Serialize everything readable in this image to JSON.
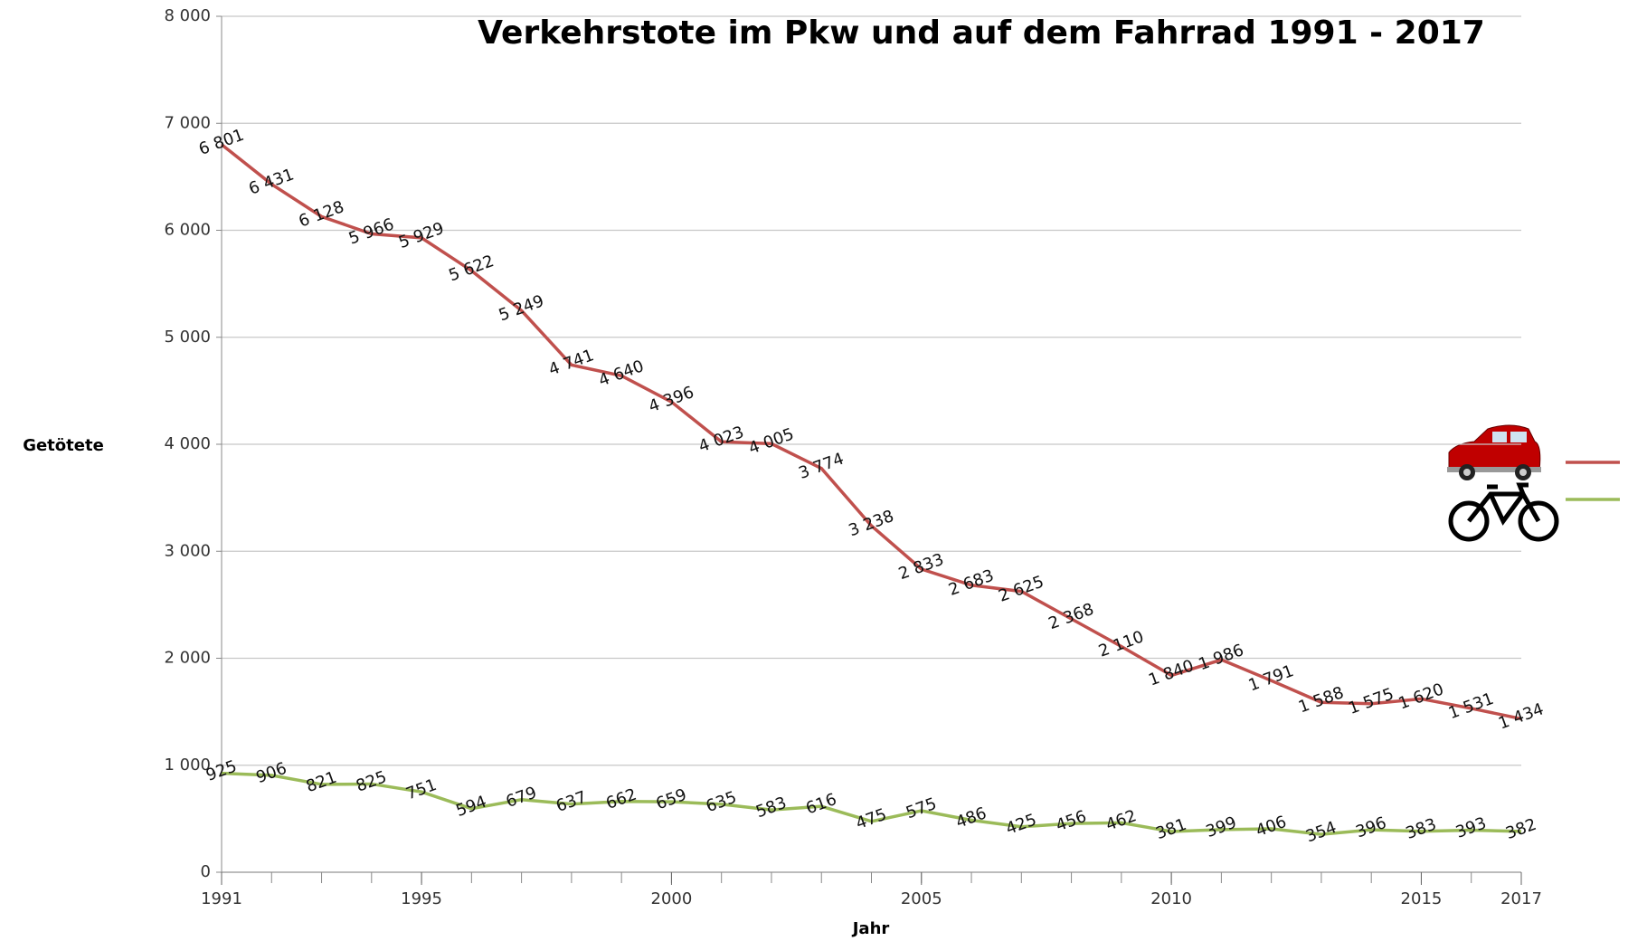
{
  "chart_data": {
    "type": "line",
    "title": "Verkehrstote im Pkw und auf dem Fahrrad 1991 - 2017",
    "x_label": "Jahr",
    "y_label": "Getötete",
    "x": [
      1991,
      1992,
      1993,
      1994,
      1995,
      1996,
      1997,
      1998,
      1999,
      2000,
      2001,
      2002,
      2003,
      2004,
      2005,
      2006,
      2007,
      2008,
      2009,
      2010,
      2011,
      2012,
      2013,
      2014,
      2015,
      2016,
      2017
    ],
    "series": [
      {
        "color": "#c0504d",
        "values": [
          6801,
          6431,
          6128,
          5966,
          5929,
          5622,
          5249,
          4741,
          4640,
          4396,
          4023,
          4005,
          3774,
          3238,
          2833,
          2683,
          2625,
          2368,
          2110,
          1840,
          1986,
          1791,
          1588,
          1575,
          1620,
          1531,
          1434
        ],
        "value_labels": [
          "6 801",
          "6 431",
          "6 128",
          "5 966",
          "5 929",
          "5 622",
          "5 249",
          "4 741",
          "4 640",
          "4 396",
          "4 023",
          "4 005",
          "3 774",
          "3 238",
          "2 833",
          "2 683",
          "2 625",
          "2 368",
          "2 110",
          "1 840",
          "1 986",
          "1 791",
          "1 588",
          "1 575",
          "1 620",
          "1 531",
          "1 434"
        ]
      },
      {
        "color": "#9bbb59",
        "values": [
          925,
          906,
          821,
          825,
          751,
          594,
          679,
          637,
          662,
          659,
          635,
          583,
          616,
          475,
          575,
          486,
          425,
          456,
          462,
          381,
          399,
          406,
          354,
          396,
          383,
          393,
          382
        ]
      }
    ],
    "xlim": [
      1991,
      2017
    ],
    "xticks": [
      1991,
      1995,
      2000,
      2005,
      2010,
      2015,
      2017
    ],
    "ylim": [
      0,
      8000
    ],
    "yticks": [
      0,
      {
        "value": 1000,
        "label": "1 000"
      },
      {
        "value": 2000,
        "label": "2 000"
      },
      {
        "value": 3000,
        "label": "3 000"
      },
      {
        "value": 4000,
        "label": "4 000"
      },
      {
        "value": 5000,
        "label": "5 000"
      },
      {
        "value": 6000,
        "label": "6 000"
      },
      {
        "value": 7000,
        "label": "7 000"
      },
      {
        "value": 8000,
        "label": "8 000"
      }
    ],
    "grid": true
  }
}
